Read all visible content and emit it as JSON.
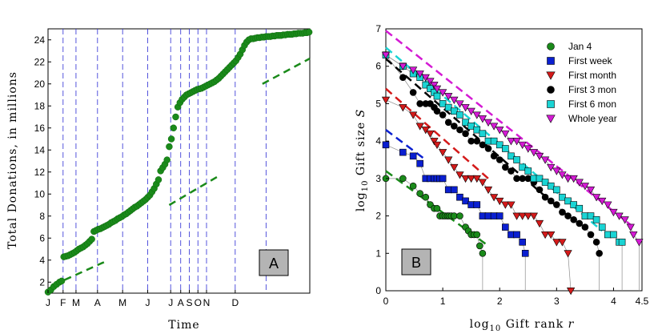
{
  "chart_data": [
    {
      "type": "scatter",
      "panel_label": "A",
      "xlabel": "Time",
      "ylabel": "Total Donations, in millions",
      "xticks": [
        "J",
        "F",
        "M",
        "A",
        "M",
        "J",
        "J",
        "A",
        "S",
        "O",
        "N",
        "D"
      ],
      "yticks": [
        2,
        4,
        6,
        8,
        10,
        12,
        14,
        16,
        18,
        20,
        22,
        24
      ],
      "ylim": [
        1,
        25
      ],
      "xlim": [
        1,
        366
      ],
      "event_days": [
        22,
        40,
        70,
        105,
        140,
        172,
        186,
        198,
        210,
        222,
        262,
        305
      ],
      "color": "#1a8a1a",
      "series": [
        {
          "x": [
            1,
            5,
            9,
            13,
            17,
            20,
            23,
            26,
            29,
            32,
            35,
            38,
            41,
            44,
            47,
            50,
            53,
            56,
            59,
            62,
            65,
            68,
            71,
            74,
            77,
            80,
            83,
            86,
            89,
            92,
            95,
            98,
            101,
            104,
            107,
            110,
            113,
            116,
            119,
            122,
            125,
            128,
            131,
            134,
            137,
            140,
            143,
            146,
            149,
            152,
            155,
            158,
            161,
            164,
            167,
            170,
            173,
            176,
            179,
            182,
            185,
            188,
            191,
            194,
            197,
            200,
            203,
            206,
            209,
            212,
            215,
            218,
            221,
            224,
            227,
            230,
            233,
            236,
            239,
            242,
            245,
            248,
            251,
            254,
            257,
            260,
            263,
            266,
            269,
            272,
            275,
            278,
            281,
            284,
            287,
            290,
            293,
            296,
            299,
            302,
            305,
            308,
            311,
            314,
            317,
            320,
            323,
            326,
            329,
            332,
            335,
            338,
            341,
            344,
            347,
            350,
            353,
            356,
            359,
            362,
            365
          ],
          "y": [
            1.1,
            1.3,
            1.6,
            1.8,
            2.0,
            2.1,
            4.3,
            4.35,
            4.4,
            4.5,
            4.6,
            4.7,
            4.85,
            5.0,
            5.1,
            5.2,
            5.35,
            5.5,
            5.7,
            5.9,
            6.6,
            6.7,
            6.8,
            6.85,
            6.95,
            7.05,
            7.15,
            7.25,
            7.4,
            7.5,
            7.6,
            7.75,
            7.85,
            7.95,
            8.1,
            8.2,
            8.35,
            8.5,
            8.65,
            8.8,
            8.9,
            9.05,
            9.2,
            9.35,
            9.5,
            9.7,
            9.9,
            10.2,
            10.5,
            10.9,
            11.3,
            12.1,
            12.4,
            12.7,
            13.1,
            14.3,
            15.0,
            16.0,
            17.0,
            17.9,
            18.3,
            18.6,
            18.8,
            19.0,
            19.1,
            19.2,
            19.3,
            19.4,
            19.5,
            19.55,
            19.6,
            19.7,
            19.8,
            19.9,
            20.0,
            20.1,
            20.2,
            20.35,
            20.5,
            20.7,
            20.9,
            21.1,
            21.3,
            21.5,
            21.7,
            21.9,
            22.1,
            22.4,
            22.7,
            23.1,
            23.5,
            23.8,
            24.0,
            24.1,
            24.1,
            24.15,
            24.2,
            24.2,
            24.25,
            24.25,
            24.3,
            24.3,
            24.3,
            24.35,
            24.35,
            24.4,
            24.4,
            24.4,
            24.45,
            24.45,
            24.5,
            24.5,
            24.5,
            24.55,
            24.55,
            24.6,
            24.6,
            24.6,
            24.65,
            24.65,
            24.7
          ],
          "_comment": ""
        }
      ],
      "trend_lines": [
        {
          "x": [
            24,
            82
          ],
          "y": [
            2.2,
            3.9
          ]
        },
        {
          "x": [
            170,
            238
          ],
          "y": [
            9.0,
            11.6
          ]
        },
        {
          "x": [
            300,
            366
          ],
          "y": [
            20.0,
            22.3
          ]
        }
      ]
    },
    {
      "type": "scatter",
      "panel_label": "B",
      "xlabel": "log10 Gift rank r",
      "ylabel": "log10 Gift size S",
      "xticks": [
        0,
        1,
        2,
        3,
        4,
        4.5
      ],
      "yticks": [
        0,
        1,
        2,
        3,
        4,
        5,
        6,
        7
      ],
      "xlim": [
        0,
        4.5
      ],
      "ylim": [
        0,
        7
      ],
      "legend_position": "top-right",
      "series": [
        {
          "name": "Jan 4",
          "marker": "circle",
          "color": "#1a8a1a",
          "x": [
            0,
            0.3,
            0.48,
            0.6,
            0.7,
            0.78,
            0.85,
            0.9,
            0.95,
            1.0,
            1.04,
            1.08,
            1.11,
            1.15,
            1.2,
            1.3,
            1.4,
            1.45,
            1.5,
            1.55,
            1.6,
            1.65,
            1.7
          ],
          "y": [
            3.0,
            3.0,
            2.8,
            2.6,
            2.5,
            2.3,
            2.2,
            2.2,
            2.0,
            2.0,
            2.0,
            2.0,
            2.0,
            2.0,
            2.0,
            2.0,
            1.7,
            1.6,
            1.5,
            1.5,
            1.5,
            1.2,
            1.0
          ]
        },
        {
          "name": "First week",
          "marker": "square",
          "color": "#0a1fd0",
          "x": [
            0,
            0.3,
            0.48,
            0.6,
            0.7,
            0.78,
            0.85,
            0.9,
            0.95,
            1.0,
            1.1,
            1.2,
            1.3,
            1.4,
            1.5,
            1.6,
            1.7,
            1.8,
            1.9,
            2.0,
            2.1,
            2.2,
            2.3,
            2.4,
            2.45
          ],
          "y": [
            3.9,
            3.7,
            3.6,
            3.4,
            3.0,
            3.0,
            3.0,
            3.0,
            3.0,
            3.0,
            2.7,
            2.7,
            2.5,
            2.4,
            2.3,
            2.3,
            2.0,
            2.0,
            2.0,
            2.0,
            1.7,
            1.5,
            1.5,
            1.3,
            1.0
          ]
        },
        {
          "name": "First month",
          "marker": "triangle-down",
          "color": "#d41a1a",
          "x": [
            0,
            0.3,
            0.48,
            0.6,
            0.7,
            0.78,
            0.85,
            0.9,
            1.0,
            1.1,
            1.2,
            1.3,
            1.4,
            1.5,
            1.6,
            1.7,
            1.8,
            1.9,
            2.0,
            2.1,
            2.2,
            2.3,
            2.4,
            2.5,
            2.6,
            2.7,
            2.8,
            2.9,
            3.0,
            3.1,
            3.2,
            3.25
          ],
          "y": [
            5.1,
            4.9,
            4.7,
            4.4,
            4.3,
            4.2,
            4.0,
            3.9,
            3.7,
            3.5,
            3.3,
            3.1,
            3.0,
            3.0,
            3.0,
            2.9,
            2.7,
            2.5,
            2.4,
            2.3,
            2.3,
            2.0,
            2.0,
            2.0,
            2.0,
            1.8,
            1.5,
            1.5,
            1.3,
            1.3,
            1.0,
            0.0
          ]
        },
        {
          "name": "First 3 mon",
          "marker": "circle",
          "color": "#000000",
          "x": [
            0,
            0.3,
            0.48,
            0.6,
            0.7,
            0.78,
            0.85,
            0.9,
            1.0,
            1.1,
            1.2,
            1.3,
            1.4,
            1.5,
            1.6,
            1.7,
            1.8,
            1.9,
            2.0,
            2.1,
            2.2,
            2.3,
            2.4,
            2.5,
            2.6,
            2.7,
            2.8,
            2.9,
            3.0,
            3.1,
            3.2,
            3.3,
            3.4,
            3.5,
            3.6,
            3.7,
            3.75
          ],
          "y": [
            6.3,
            5.7,
            5.3,
            5.0,
            5.0,
            5.0,
            4.9,
            4.8,
            4.7,
            4.5,
            4.4,
            4.3,
            4.2,
            4.0,
            4.0,
            3.9,
            3.8,
            3.6,
            3.5,
            3.3,
            3.2,
            3.0,
            3.0,
            3.0,
            2.9,
            2.7,
            2.5,
            2.4,
            2.3,
            2.1,
            2.0,
            1.9,
            1.8,
            1.7,
            1.5,
            1.3,
            1.0
          ]
        },
        {
          "name": "First 6 mon",
          "marker": "square",
          "color": "#1ad4d4",
          "x": [
            0,
            0.3,
            0.48,
            0.6,
            0.7,
            0.78,
            0.85,
            0.9,
            1.0,
            1.1,
            1.2,
            1.3,
            1.4,
            1.5,
            1.6,
            1.7,
            1.8,
            1.9,
            2.0,
            2.1,
            2.2,
            2.3,
            2.4,
            2.5,
            2.6,
            2.7,
            2.8,
            2.9,
            3.0,
            3.1,
            3.2,
            3.3,
            3.4,
            3.5,
            3.6,
            3.7,
            3.8,
            3.9,
            4.0,
            4.1,
            4.15
          ],
          "y": [
            6.3,
            6.0,
            5.8,
            5.7,
            5.5,
            5.4,
            5.3,
            5.2,
            5.0,
            4.9,
            4.8,
            4.7,
            4.5,
            4.4,
            4.3,
            4.2,
            4.0,
            4.0,
            3.9,
            3.8,
            3.6,
            3.5,
            3.3,
            3.2,
            3.0,
            3.0,
            2.9,
            2.8,
            2.7,
            2.5,
            2.4,
            2.3,
            2.2,
            2.0,
            2.0,
            1.9,
            1.7,
            1.5,
            1.5,
            1.3,
            1.3
          ]
        },
        {
          "name": "Whole year",
          "marker": "triangle-down",
          "color": "#d41ad4",
          "x": [
            0,
            0.3,
            0.48,
            0.6,
            0.7,
            0.78,
            0.85,
            0.9,
            1.0,
            1.1,
            1.2,
            1.3,
            1.4,
            1.5,
            1.6,
            1.7,
            1.8,
            1.9,
            2.0,
            2.1,
            2.2,
            2.3,
            2.4,
            2.5,
            2.6,
            2.7,
            2.8,
            2.9,
            3.0,
            3.1,
            3.2,
            3.3,
            3.4,
            3.5,
            3.6,
            3.7,
            3.8,
            3.9,
            4.0,
            4.1,
            4.2,
            4.3,
            4.35,
            4.45
          ],
          "y": [
            6.3,
            6.0,
            5.9,
            5.8,
            5.7,
            5.6,
            5.5,
            5.4,
            5.3,
            5.2,
            5.1,
            5.0,
            4.9,
            4.8,
            4.7,
            4.6,
            4.5,
            4.4,
            4.3,
            4.2,
            4.0,
            4.0,
            3.9,
            3.8,
            3.7,
            3.6,
            3.5,
            3.3,
            3.2,
            3.1,
            3.0,
            3.0,
            2.9,
            2.8,
            2.7,
            2.5,
            2.4,
            2.3,
            2.1,
            2.0,
            1.9,
            1.7,
            1.5,
            1.3
          ]
        }
      ],
      "fit_lines": [
        {
          "color": "#1a8a1a",
          "x": [
            0,
            1.8
          ],
          "y": [
            3.2,
            1.2
          ]
        },
        {
          "color": "#0a1fd0",
          "x": [
            0,
            0.7
          ],
          "y": [
            4.3,
            3.5
          ]
        },
        {
          "color": "#d41a1a",
          "x": [
            0,
            1.8
          ],
          "y": [
            5.4,
            3.0
          ]
        },
        {
          "color": "#000000",
          "x": [
            0,
            3.2
          ],
          "y": [
            6.2,
            2.0
          ]
        },
        {
          "color": "#1ad4d4",
          "x": [
            0,
            3.8
          ],
          "y": [
            6.5,
            1.6
          ]
        },
        {
          "color": "#d41ad4",
          "x": [
            0,
            4.35
          ],
          "y": [
            6.95,
            1.7
          ]
        }
      ]
    }
  ]
}
